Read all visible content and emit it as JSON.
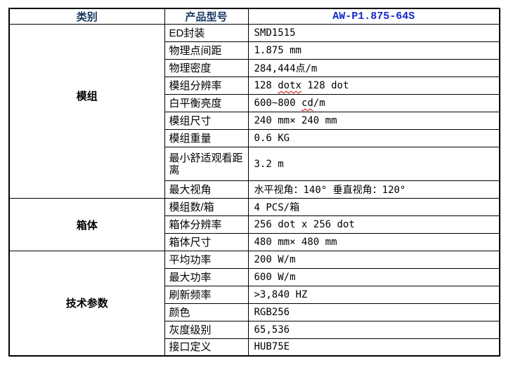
{
  "table": {
    "header": {
      "category_col": "类别",
      "model_col": "产品型号",
      "model_number": "AW-P1.875-64S"
    },
    "colors": {
      "header_text": "#17375E",
      "model_text": "#1428C8",
      "grid": "#000000",
      "misspelling_underline": "#D00000"
    },
    "sections": [
      {
        "category": "模组",
        "rows": [
          {
            "label": "ED封装",
            "value": "SMD1515"
          },
          {
            "label": "物理点间距",
            "value": "1.875 mm"
          },
          {
            "label": "物理密度",
            "value": "284,444点/m"
          },
          {
            "label": "模组分辨率",
            "value": "128 ",
            "squiggle": "dotx",
            "value2": " 128 dot"
          },
          {
            "label": "白平衡亮度",
            "value": "600~800 ",
            "squiggle": "cd",
            "value2": "/m"
          },
          {
            "label": "模组尺寸",
            "value": "240 mm× 240 mm"
          },
          {
            "label": "模组重量",
            "value": "0.6 KG"
          },
          {
            "label": "最小舒适观看距离",
            "value": "3.2 m"
          },
          {
            "label": "最大视角",
            "value": "水平视角：140° 垂直视角：120°"
          }
        ]
      },
      {
        "category": "箱体",
        "rows": [
          {
            "label": "模组数/箱",
            "value": "4 PCS/箱"
          },
          {
            "label": "箱体分辨率",
            "value": "256 dot x 256 dot"
          },
          {
            "label": "箱体尺寸",
            "value": "480 mm× 480 mm"
          }
        ]
      },
      {
        "category": "技术参数",
        "rows": [
          {
            "label": "平均功率",
            "value": "200 W/m"
          },
          {
            "label": "最大功率",
            "value": "600 W/m"
          },
          {
            "label": "刷新频率",
            "value": ">3,840 HZ"
          },
          {
            "label": "颜色",
            "value": "RGB256"
          },
          {
            "label": "灰度级别",
            "value": "65,536"
          },
          {
            "label": "接口定义",
            "value": "HUB75E"
          }
        ]
      }
    ]
  }
}
